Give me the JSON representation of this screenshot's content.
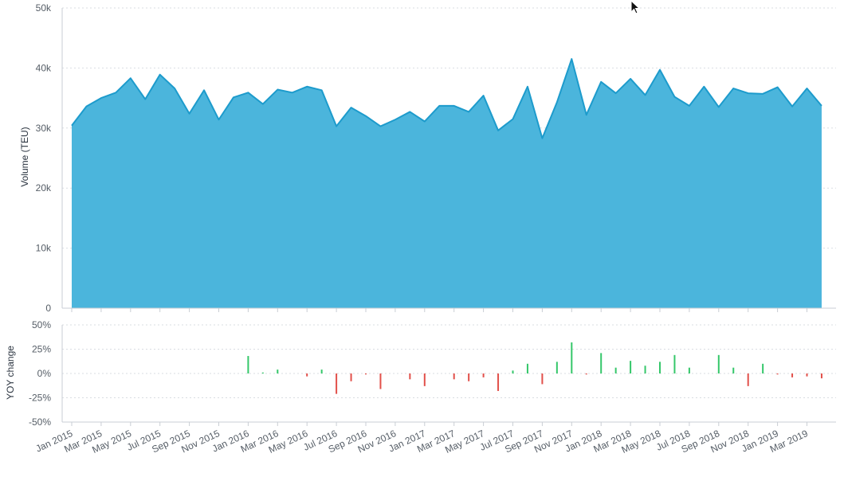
{
  "chart_data": {
    "type": "area",
    "colors": {
      "area_fill": "#4bb5dc",
      "area_line": "#1d9bcc",
      "positive": "#35c76a",
      "negative": "#e2504a"
    },
    "top_panel": {
      "ylabel": "Volume (TEU)",
      "ylim": [
        0,
        50000
      ],
      "yticks": [
        {
          "value": 0,
          "label": "0"
        },
        {
          "value": 10000,
          "label": "10k"
        },
        {
          "value": 20000,
          "label": "20k"
        },
        {
          "value": 30000,
          "label": "30k"
        },
        {
          "value": 40000,
          "label": "40k"
        },
        {
          "value": 50000,
          "label": "50k"
        }
      ]
    },
    "bottom_panel": {
      "ylabel": "YOY change",
      "ylim": [
        -50,
        50
      ],
      "yticks": [
        {
          "value": -50,
          "label": "-50%"
        },
        {
          "value": -25,
          "label": "-25%"
        },
        {
          "value": 0,
          "label": "0%"
        },
        {
          "value": 25,
          "label": "25%"
        },
        {
          "value": 50,
          "label": "50%"
        }
      ]
    },
    "x": [
      "Jan 2015",
      "Feb 2015",
      "Mar 2015",
      "Apr 2015",
      "May 2015",
      "Jun 2015",
      "Jul 2015",
      "Aug 2015",
      "Sep 2015",
      "Oct 2015",
      "Nov 2015",
      "Dec 2015",
      "Jan 2016",
      "Feb 2016",
      "Mar 2016",
      "Apr 2016",
      "May 2016",
      "Jun 2016",
      "Jul 2016",
      "Aug 2016",
      "Sep 2016",
      "Oct 2016",
      "Nov 2016",
      "Dec 2016",
      "Jan 2017",
      "Feb 2017",
      "Mar 2017",
      "Apr 2017",
      "May 2017",
      "Jun 2017",
      "Jul 2017",
      "Aug 2017",
      "Sep 2017",
      "Oct 2017",
      "Nov 2017",
      "Dec 2017",
      "Jan 2018",
      "Feb 2018",
      "Mar 2018",
      "Apr 2018",
      "May 2018",
      "Jun 2018",
      "Jul 2018",
      "Aug 2018",
      "Sep 2018",
      "Oct 2018",
      "Nov 2018",
      "Dec 2018",
      "Jan 2019",
      "Feb 2019",
      "Mar 2019",
      "Apr 2019"
    ],
    "xtick_labels": [
      "Jan 2015",
      "Mar 2015",
      "May 2015",
      "Jul 2015",
      "Sep 2015",
      "Nov 2015",
      "Jan 2016",
      "Mar 2016",
      "May 2016",
      "Jul 2016",
      "Sep 2016",
      "Nov 2016",
      "Jan 2017",
      "Mar 2017",
      "May 2017",
      "Jul 2017",
      "Sep 2017",
      "Nov 2017",
      "Jan 2018",
      "Mar 2018",
      "May 2018",
      "Jul 2018",
      "Sep 2018",
      "Nov 2018",
      "Jan 2019",
      "Mar 2019"
    ],
    "volume": [
      30400,
      33600,
      35000,
      35900,
      38300,
      34800,
      38900,
      36600,
      32400,
      36300,
      31400,
      35100,
      35900,
      34000,
      36400,
      35900,
      36900,
      36300,
      30300,
      33400,
      32000,
      30300,
      31400,
      32700,
      31100,
      33700,
      33700,
      32700,
      35400,
      29600,
      31500,
      36900,
      28300,
      34300,
      41500,
      32200,
      37700,
      35800,
      38200,
      35500,
      39700,
      35200,
      33700,
      36900,
      33500,
      36600,
      35800,
      35700,
      36800,
      33600,
      36600,
      33700
    ],
    "yoy": [
      null,
      null,
      null,
      null,
      null,
      null,
      null,
      null,
      null,
      null,
      null,
      null,
      18,
      1,
      4,
      0,
      -3,
      4,
      -21,
      -8,
      -1,
      -16,
      0,
      -6,
      -13,
      0,
      -6,
      -8,
      -4,
      -18,
      3,
      10,
      -11,
      12,
      32,
      -1,
      21,
      6,
      13,
      8,
      12,
      19,
      6,
      0,
      19,
      6,
      -13,
      10,
      -1,
      -4,
      -3,
      -5
    ]
  }
}
